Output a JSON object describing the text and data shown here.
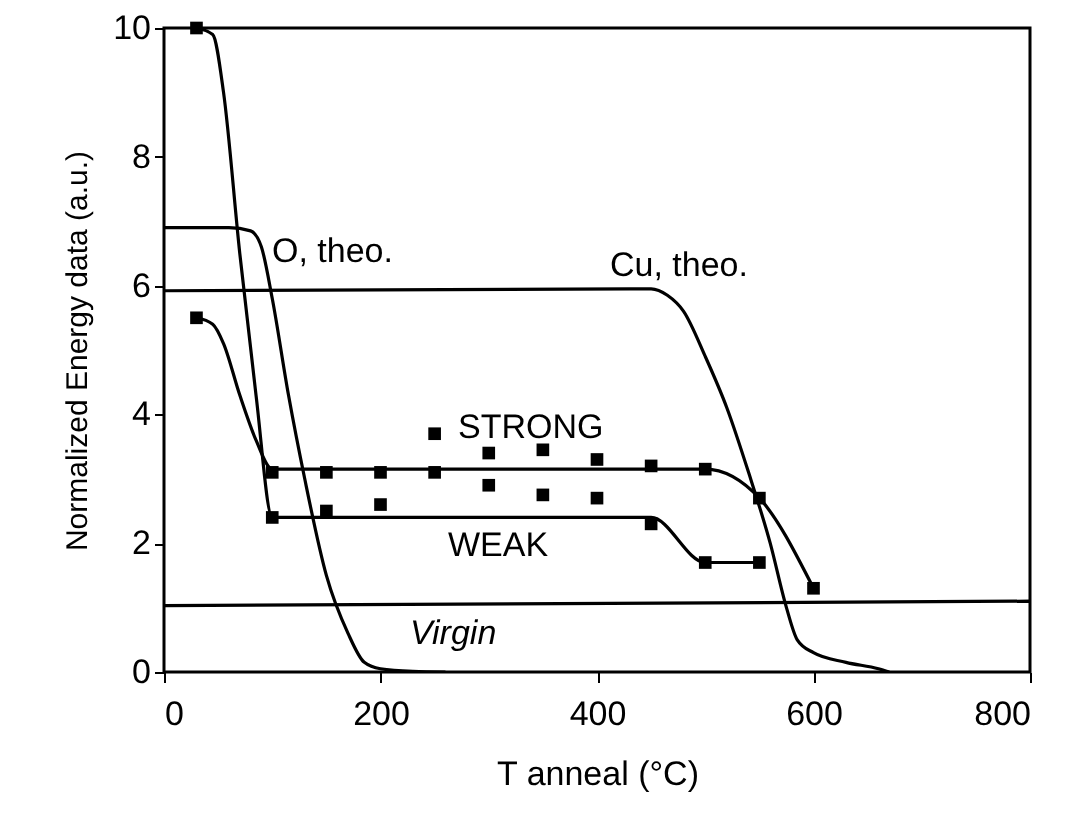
{
  "chart_data": {
    "type": "line",
    "xlabel": "T anneal (°C)",
    "ylabel": "Normalized Energy data (a.u.)",
    "xlim": [
      0,
      800
    ],
    "ylim": [
      0,
      10
    ],
    "xticks": [
      0,
      200,
      400,
      600,
      800
    ],
    "yticks": [
      0,
      2,
      4,
      6,
      8,
      10
    ],
    "series": [
      {
        "type": "line",
        "color": "#000000",
        "x": [
          0,
          60,
          80,
          90,
          100,
          115,
          130,
          150,
          170,
          185,
          200,
          230,
          260
        ],
        "values": [
          6.9,
          6.9,
          6.85,
          6.6,
          5.8,
          4.3,
          3,
          1.5,
          0.6,
          0.15,
          0.05,
          0.01,
          0
        ]
      },
      {
        "type": "line",
        "color": "#000000",
        "x": [
          0,
          430,
          450,
          465,
          480,
          500,
          520,
          540,
          560,
          575,
          585,
          600,
          630,
          660,
          670
        ],
        "values": [
          5.92,
          5.95,
          5.95,
          5.85,
          5.6,
          4.9,
          4.1,
          3.1,
          2,
          1,
          0.5,
          0.3,
          0.15,
          0.05,
          0
        ]
      },
      {
        "type": "line",
        "color": "#000000",
        "x": [
          30,
          45,
          55,
          70,
          85,
          100,
          450,
          500,
          550
        ],
        "values": [
          10,
          9.9,
          9,
          6.5,
          4.3,
          2.4,
          2.4,
          1.7,
          1.7
        ]
      },
      {
        "type": "line",
        "color": "#000000",
        "x": [
          30,
          45,
          55,
          70,
          85,
          100,
          500,
          550,
          600
        ],
        "values": [
          5.5,
          5.4,
          5.1,
          4.3,
          3.6,
          3.15,
          3.15,
          2.7,
          1.3
        ]
      },
      {
        "type": "line",
        "color": "#000000",
        "x": [
          0,
          800
        ],
        "values": [
          1.03,
          1.1
        ]
      },
      {
        "type": "scatter",
        "marker": "square",
        "color": "#000000",
        "x": [
          30,
          100,
          150,
          200,
          250,
          300,
          350,
          400,
          450,
          500,
          550,
          600
        ],
        "values": [
          5.5,
          3.1,
          3.1,
          3.1,
          3.7,
          3.4,
          3.45,
          3.3,
          3.2,
          3.15,
          2.7,
          1.3
        ]
      },
      {
        "type": "scatter",
        "marker": "square",
        "color": "#000000",
        "x": [
          30,
          100,
          150,
          200,
          250,
          300,
          350,
          400,
          450,
          500,
          550
        ],
        "values": [
          10,
          2.4,
          2.5,
          2.6,
          3.1,
          2.9,
          2.75,
          2.7,
          2.3,
          1.7,
          1.7
        ]
      }
    ],
    "annotations": [
      "O, theo.",
      "Cu, theo.",
      "STRONG",
      "WEAK",
      "Virgin"
    ]
  }
}
